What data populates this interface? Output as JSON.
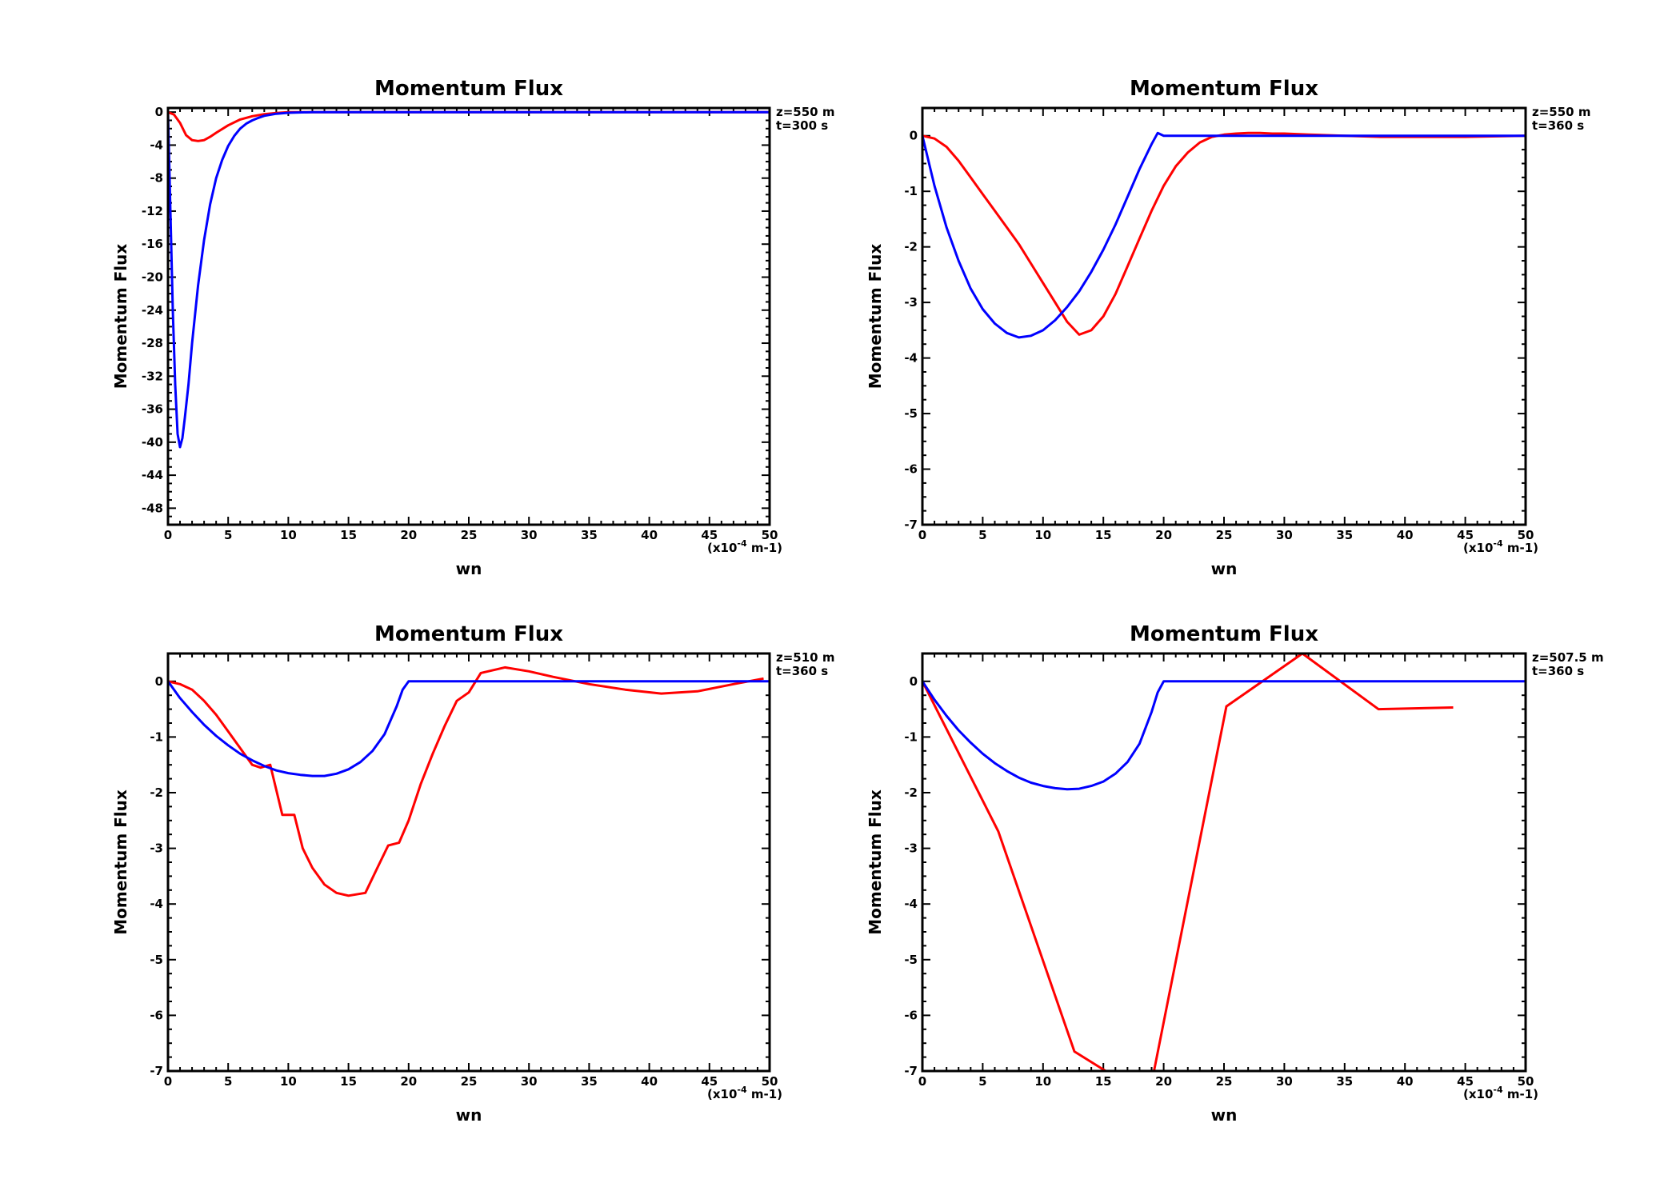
{
  "chart_data": [
    {
      "type": "line",
      "title": "Momentum Flux",
      "xlabel": "wn",
      "ylabel": "Momentum Flux",
      "x_unit_label": "(x10",
      "x_unit_exp": "-4",
      "x_unit_suffix": " m-1)",
      "annotations": [
        "z=550 m",
        "t=300 s"
      ],
      "xlim": [
        0,
        50
      ],
      "ylim": [
        -50,
        0.5
      ],
      "xticks": [
        0,
        5,
        10,
        15,
        20,
        25,
        30,
        35,
        40,
        45,
        50
      ],
      "yticks": [
        0,
        -4,
        -8,
        -12,
        -16,
        -20,
        -24,
        -28,
        -32,
        -36,
        -40,
        -44,
        -48
      ],
      "grid": false,
      "series": [
        {
          "color": "#ff0000",
          "x": [
            0,
            0.5,
            1,
            1.5,
            2,
            2.5,
            3,
            3.5,
            4,
            5,
            6,
            7,
            8,
            9,
            10,
            12,
            15,
            20,
            30,
            40,
            50
          ],
          "y": [
            0,
            -0.3,
            -1.3,
            -2.8,
            -3.4,
            -3.5,
            -3.4,
            -3.0,
            -2.5,
            -1.6,
            -0.9,
            -0.5,
            -0.25,
            -0.1,
            0,
            0,
            0,
            0,
            0,
            0,
            0
          ]
        },
        {
          "color": "#0000ff",
          "x": [
            0,
            0.2,
            0.4,
            0.6,
            0.8,
            1.0,
            1.2,
            1.4,
            1.7,
            2,
            2.5,
            3,
            3.5,
            4,
            4.5,
            5,
            5.5,
            6,
            6.5,
            7,
            7.5,
            8,
            9,
            10,
            12,
            15,
            20,
            30,
            40,
            50
          ],
          "y": [
            0,
            -12,
            -24,
            -33,
            -39,
            -40.6,
            -39.5,
            -37,
            -33,
            -28,
            -21,
            -15.5,
            -11.2,
            -8,
            -5.8,
            -4.1,
            -2.9,
            -2.0,
            -1.4,
            -1.0,
            -0.7,
            -0.45,
            -0.2,
            -0.08,
            0,
            0,
            0,
            0,
            0,
            0
          ]
        }
      ]
    },
    {
      "type": "line",
      "title": "Momentum Flux",
      "xlabel": "wn",
      "ylabel": "Momentum Flux",
      "x_unit_label": "(x10",
      "x_unit_exp": "-4",
      "x_unit_suffix": " m-1)",
      "annotations": [
        "z=550 m",
        "t=360 s"
      ],
      "xlim": [
        0,
        50
      ],
      "ylim": [
        -7,
        0.5
      ],
      "xticks": [
        0,
        5,
        10,
        15,
        20,
        25,
        30,
        35,
        40,
        45,
        50
      ],
      "yticks": [
        0,
        -1,
        -2,
        -3,
        -4,
        -5,
        -6,
        -7
      ],
      "grid": false,
      "series": [
        {
          "color": "#ff0000",
          "x": [
            0,
            1,
            2,
            3,
            4,
            5,
            6,
            7,
            8,
            9,
            10,
            11,
            12,
            13,
            14,
            15,
            16,
            17,
            18,
            19,
            20,
            21,
            22,
            23,
            24,
            25,
            26,
            27,
            28,
            29,
            30,
            32,
            35,
            38,
            42,
            45,
            50
          ],
          "y": [
            0,
            -0.05,
            -0.2,
            -0.45,
            -0.75,
            -1.05,
            -1.35,
            -1.65,
            -1.95,
            -2.3,
            -2.65,
            -3.0,
            -3.35,
            -3.58,
            -3.5,
            -3.25,
            -2.85,
            -2.35,
            -1.85,
            -1.35,
            -0.9,
            -0.55,
            -0.3,
            -0.12,
            -0.02,
            0.02,
            0.04,
            0.05,
            0.05,
            0.04,
            0.04,
            0.02,
            0,
            -0.02,
            -0.02,
            -0.02,
            0
          ]
        },
        {
          "color": "#0000ff",
          "x": [
            0,
            1,
            2,
            3,
            4,
            5,
            6,
            7,
            8,
            9,
            10,
            11,
            12,
            13,
            14,
            15,
            16,
            17,
            18,
            19,
            19.5,
            20,
            20.01,
            25,
            30,
            35,
            40,
            45,
            50
          ],
          "y": [
            0,
            -0.9,
            -1.65,
            -2.25,
            -2.75,
            -3.12,
            -3.38,
            -3.55,
            -3.63,
            -3.6,
            -3.5,
            -3.32,
            -3.08,
            -2.8,
            -2.45,
            -2.05,
            -1.6,
            -1.1,
            -0.6,
            -0.15,
            0.05,
            0.0,
            0,
            0,
            0,
            0,
            0,
            0,
            0
          ]
        }
      ]
    },
    {
      "type": "line",
      "title": "Momentum Flux",
      "xlabel": "wn",
      "ylabel": "Momentum Flux",
      "x_unit_label": "(x10",
      "x_unit_exp": "-4",
      "x_unit_suffix": " m-1)",
      "annotations": [
        "z=510 m",
        "t=360 s"
      ],
      "xlim": [
        0,
        50
      ],
      "ylim": [
        -7,
        0.5
      ],
      "xticks": [
        0,
        5,
        10,
        15,
        20,
        25,
        30,
        35,
        40,
        45,
        50
      ],
      "yticks": [
        0,
        -1,
        -2,
        -3,
        -4,
        -5,
        -6,
        -7
      ],
      "grid": false,
      "series": [
        {
          "color": "#ff0000",
          "x": [
            0,
            1,
            2,
            3,
            4,
            5,
            6,
            7,
            7.7,
            8.5,
            9.5,
            10.5,
            11.2,
            12,
            13,
            14,
            15,
            16.4,
            17.4,
            18.3,
            19.2,
            20,
            21,
            22,
            23,
            24,
            25,
            26,
            28,
            30,
            32,
            35,
            38,
            41,
            44,
            47,
            49.5
          ],
          "y": [
            0,
            -0.05,
            -0.15,
            -0.35,
            -0.6,
            -0.9,
            -1.2,
            -1.5,
            -1.55,
            -1.5,
            -2.4,
            -2.4,
            -3.0,
            -3.35,
            -3.65,
            -3.8,
            -3.85,
            -3.8,
            -3.35,
            -2.95,
            -2.9,
            -2.5,
            -1.85,
            -1.3,
            -0.8,
            -0.35,
            -0.2,
            0.15,
            0.25,
            0.18,
            0.08,
            -0.05,
            -0.15,
            -0.22,
            -0.18,
            -0.05,
            0.05
          ]
        },
        {
          "color": "#0000ff",
          "x": [
            0,
            1,
            2,
            3,
            4,
            5,
            6,
            7,
            8,
            9,
            10,
            11,
            12,
            13,
            14,
            15,
            16,
            17,
            18,
            19,
            19.5,
            20,
            20.01,
            25,
            30,
            35,
            40,
            45,
            50
          ],
          "y": [
            0,
            -0.3,
            -0.55,
            -0.78,
            -0.98,
            -1.15,
            -1.3,
            -1.42,
            -1.52,
            -1.6,
            -1.65,
            -1.68,
            -1.7,
            -1.7,
            -1.66,
            -1.58,
            -1.45,
            -1.25,
            -0.95,
            -0.45,
            -0.15,
            0.0,
            0,
            0,
            0,
            0,
            0,
            0,
            0
          ]
        }
      ]
    },
    {
      "type": "line",
      "title": "Momentum Flux",
      "xlabel": "wn",
      "ylabel": "Momentum Flux",
      "x_unit_label": "(x10",
      "x_unit_exp": "-4",
      "x_unit_suffix": " m-1)",
      "annotations": [
        "z=507.5 m",
        "t=360 s"
      ],
      "xlim": [
        0,
        50
      ],
      "ylim": [
        -7,
        0.5
      ],
      "xticks": [
        0,
        5,
        10,
        15,
        20,
        25,
        30,
        35,
        40,
        45,
        50
      ],
      "yticks": [
        0,
        -1,
        -2,
        -3,
        -4,
        -5,
        -6,
        -7
      ],
      "grid": false,
      "series": [
        {
          "color": "#ff0000",
          "x": [
            0,
            6.3,
            12.6,
            15.2,
            null,
            19.2,
            25.2,
            31.5,
            37.8,
            44
          ],
          "y": [
            0,
            -2.7,
            -6.65,
            -7.0,
            null,
            -7.0,
            -0.45,
            0.5,
            -0.5,
            -0.47
          ]
        },
        {
          "color": "#0000ff",
          "x": [
            0,
            1,
            2,
            3,
            4,
            5,
            6,
            7,
            8,
            9,
            10,
            11,
            12,
            13,
            14,
            15,
            16,
            17,
            18,
            19,
            19.5,
            20,
            20.01,
            25,
            30,
            35,
            40,
            45,
            50
          ],
          "y": [
            0,
            -0.33,
            -0.62,
            -0.88,
            -1.1,
            -1.3,
            -1.47,
            -1.61,
            -1.73,
            -1.82,
            -1.88,
            -1.92,
            -1.94,
            -1.93,
            -1.88,
            -1.8,
            -1.66,
            -1.45,
            -1.12,
            -0.55,
            -0.2,
            0.0,
            0,
            0,
            0,
            0,
            0,
            0,
            0
          ]
        }
      ]
    }
  ]
}
